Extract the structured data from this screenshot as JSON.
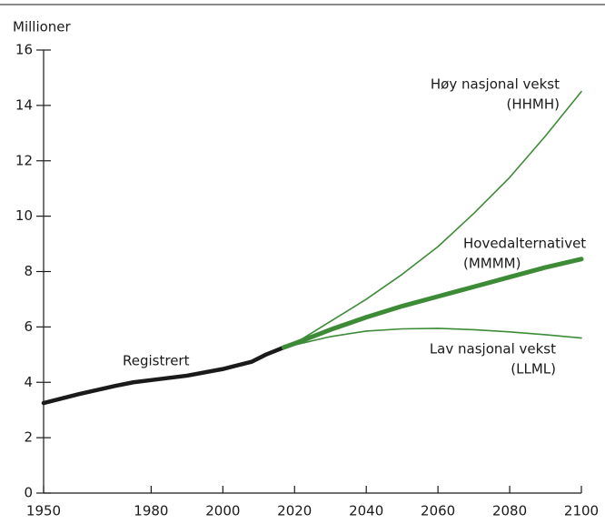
{
  "chart_data": {
    "type": "line",
    "y_label": "Millioner",
    "xlim": [
      1950,
      2100
    ],
    "xticks": [
      1950,
      1980,
      2000,
      2020,
      2040,
      2060,
      2080,
      2100
    ],
    "ylim": [
      0,
      16
    ],
    "yticks": [
      0,
      2,
      4,
      6,
      8,
      10,
      12,
      14,
      16
    ],
    "series": [
      {
        "name": "Registrert",
        "color": "#1a1a1a",
        "width": 4.5,
        "x": [
          1950,
          1960,
          1970,
          1975,
          1980,
          1990,
          2000,
          2008,
          2012,
          2017
        ],
        "values": [
          3.25,
          3.58,
          3.87,
          4.0,
          4.08,
          4.24,
          4.48,
          4.74,
          5.0,
          5.26
        ]
      },
      {
        "name": "Høy nasjonal vekst",
        "code": "(HHMH)",
        "color": "#3d8b37",
        "width": 1.6,
        "x": [
          2017,
          2020,
          2030,
          2040,
          2050,
          2060,
          2070,
          2080,
          2090,
          2100
        ],
        "values": [
          5.26,
          5.4,
          6.2,
          7.0,
          7.9,
          8.9,
          10.1,
          11.4,
          12.9,
          14.5
        ]
      },
      {
        "name": "Hovedalternativet",
        "code": "(MMMM)",
        "color": "#3d8b37",
        "width": 5,
        "x": [
          2017,
          2020,
          2030,
          2040,
          2050,
          2060,
          2070,
          2080,
          2090,
          2100
        ],
        "values": [
          5.26,
          5.4,
          5.9,
          6.35,
          6.75,
          7.1,
          7.45,
          7.8,
          8.15,
          8.45
        ]
      },
      {
        "name": "Lav nasjonal vekst",
        "code": "(LLML)",
        "color": "#3d8b37",
        "width": 1.6,
        "x": [
          2017,
          2020,
          2030,
          2040,
          2050,
          2060,
          2070,
          2080,
          2090,
          2100
        ],
        "values": [
          5.26,
          5.35,
          5.65,
          5.85,
          5.93,
          5.95,
          5.9,
          5.82,
          5.72,
          5.6
        ]
      }
    ]
  }
}
